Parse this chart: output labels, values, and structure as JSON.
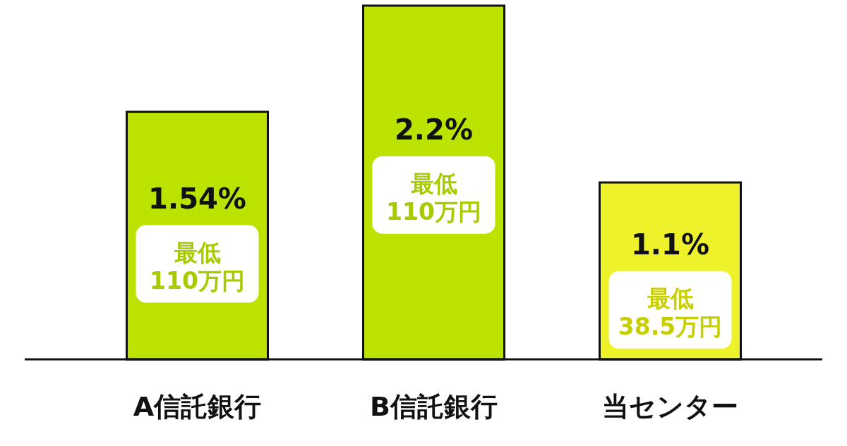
{
  "chart_data": {
    "type": "bar",
    "categories": [
      "A信託銀行",
      "B信託銀行",
      "当センター"
    ],
    "values": [
      1.54,
      2.2,
      1.1
    ],
    "colors": [
      "#bce200",
      "#bce200",
      "#eef22a"
    ],
    "value_labels": [
      "1.54%",
      "2.2%",
      "1.1%"
    ],
    "annotations": [
      "最低\n110万円",
      "最低\n110万円",
      "最低\n38.5万円"
    ]
  }
}
